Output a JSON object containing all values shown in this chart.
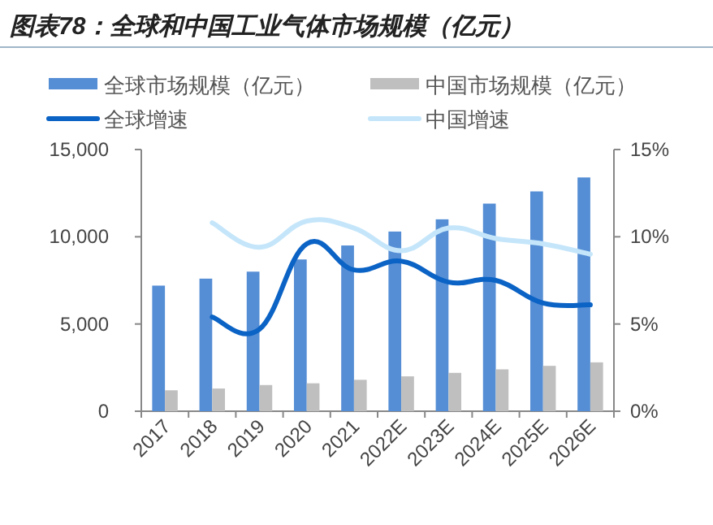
{
  "chart_data": {
    "type": "bar",
    "title": "图表78：全球和中国工业气体市场规模（亿元）",
    "categories": [
      "2017",
      "2018",
      "2019",
      "2020",
      "2021",
      "2022E",
      "2023E",
      "2024E",
      "2025E",
      "2026E"
    ],
    "series": [
      {
        "name": "全球市场规模（亿元）",
        "color": "#558ed5",
        "values": [
          7200,
          7600,
          8000,
          8700,
          9500,
          10300,
          11000,
          11900,
          12600,
          13400
        ]
      },
      {
        "name": "中国市场规模（亿元）",
        "color": "#bfbfbf",
        "values": [
          1200,
          1300,
          1500,
          1600,
          1800,
          2000,
          2200,
          2400,
          2600,
          2800
        ]
      },
      {
        "name": "全球增速",
        "type": "line",
        "axis": "y2",
        "color": "#0b63c5",
        "values": [
          null,
          5.4,
          4.7,
          9.6,
          8.1,
          8.6,
          7.4,
          7.5,
          6.2,
          6.1
        ]
      },
      {
        "name": "中国增速",
        "type": "line",
        "axis": "y2",
        "color": "#c5e6fa",
        "values": [
          null,
          10.8,
          9.4,
          10.9,
          10.5,
          9.2,
          10.5,
          9.9,
          9.6,
          9.0
        ]
      }
    ],
    "ylim": [
      0,
      15000
    ],
    "yticks": [
      0,
      {
        "value": 5000,
        "label": "5,000"
      },
      {
        "value": 10000,
        "label": "10,000"
      },
      {
        "value": 15000,
        "label": "15,000"
      }
    ],
    "y2lim": [
      0,
      15
    ],
    "y2ticks": [
      {
        "value": 0,
        "label": "0%"
      },
      {
        "value": 5,
        "label": "5%"
      },
      {
        "value": 10,
        "label": "10%"
      },
      {
        "value": 15,
        "label": "15%"
      }
    ],
    "legend": "top",
    "grid": false
  }
}
